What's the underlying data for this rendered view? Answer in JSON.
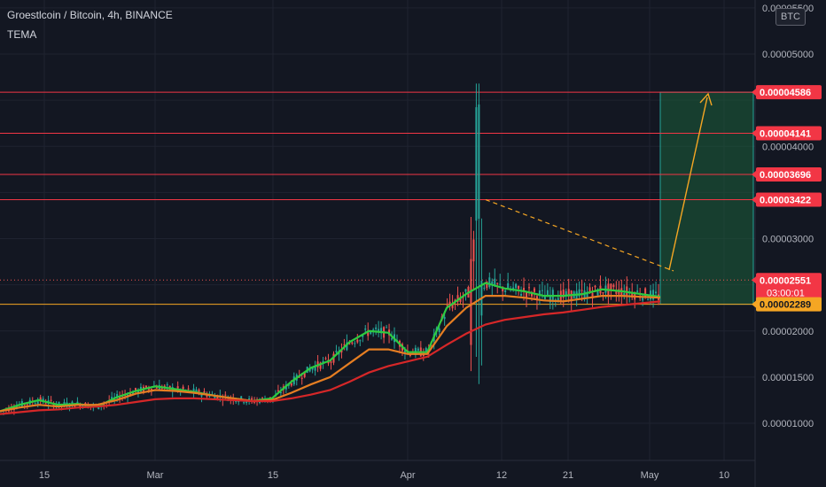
{
  "header": {
    "title": "Groestlcoin / Bitcoin, 4h, BINANCE",
    "indicator": "TEMA"
  },
  "currency_button": "BTC",
  "colors": {
    "background": "#131722",
    "grid": "#1f2330",
    "candle_up": "#26a69a",
    "candle_down": "#ef5350",
    "hline": "#f23645",
    "support": "#f5a623",
    "target_box": "#1b5e3b",
    "tema_fast": "#2ecc40",
    "tema_mid": "#e67e22",
    "tema_slow": "#d62728"
  },
  "chart_data": {
    "type": "line",
    "title": "Groestlcoin / Bitcoin, 4h, BINANCE",
    "x_ticks": [
      "15",
      "Mar",
      "15",
      "Apr",
      "12",
      "21",
      "May",
      "10"
    ],
    "y_ticks": [
      "0.00001000",
      "0.00001500",
      "0.00002000",
      "0.00003000",
      "0.00004000",
      "0.00005000",
      "0.00005500"
    ],
    "ylim": [
      8.8e-06,
      5.5e-06
    ],
    "price_labels": [
      {
        "value": 4.586e-05,
        "label": "0.00004586",
        "kind": "resistance"
      },
      {
        "value": 4.141e-05,
        "label": "0.00004141",
        "kind": "resistance"
      },
      {
        "value": 3.696e-05,
        "label": "0.00003696",
        "kind": "resistance"
      },
      {
        "value": 3.422e-05,
        "label": "0.00003422",
        "kind": "resistance"
      },
      {
        "value": 2.551e-05,
        "label": "0.00002551",
        "kind": "last"
      },
      {
        "value": 2.289e-05,
        "label": "0.00002289",
        "kind": "support"
      }
    ],
    "countdown": "03:00:01",
    "series": [
      {
        "name": "TEMA fast",
        "values": [
          1.13e-05,
          1.2e-05,
          1.25e-05,
          1.2e-05,
          1.21e-05,
          1.18e-05,
          1.28e-05,
          1.35e-05,
          1.4e-05,
          1.37e-05,
          1.34e-05,
          1.3e-05,
          1.27e-05,
          1.24e-05,
          1.27e-05,
          1.45e-05,
          1.6e-05,
          1.68e-05,
          1.88e-05,
          2e-05,
          1.98e-05,
          1.77e-05,
          1.77e-05,
          2.25e-05,
          2.4e-05,
          2.52e-05,
          2.46e-05,
          2.43e-05,
          2.38e-05,
          2.38e-05,
          2.4e-05,
          2.45e-05,
          2.43e-05,
          2.4e-05,
          2.37e-05
        ]
      },
      {
        "name": "TEMA mid",
        "values": [
          1.13e-05,
          1.17e-05,
          1.2e-05,
          1.18e-05,
          1.2e-05,
          1.2e-05,
          1.25e-05,
          1.32e-05,
          1.36e-05,
          1.35e-05,
          1.33e-05,
          1.3e-05,
          1.27e-05,
          1.24e-05,
          1.25e-05,
          1.33e-05,
          1.42e-05,
          1.5e-05,
          1.65e-05,
          1.8e-05,
          1.8e-05,
          1.75e-05,
          1.75e-05,
          2.05e-05,
          2.25e-05,
          2.38e-05,
          2.38e-05,
          2.36e-05,
          2.33e-05,
          2.32e-05,
          2.35e-05,
          2.38e-05,
          2.38e-05,
          2.37e-05,
          2.36e-05
        ]
      },
      {
        "name": "TEMA slow",
        "values": [
          1.1e-05,
          1.12e-05,
          1.14e-05,
          1.15e-05,
          1.17e-05,
          1.18e-05,
          1.2e-05,
          1.23e-05,
          1.26e-05,
          1.27e-05,
          1.27e-05,
          1.26e-05,
          1.25e-05,
          1.24e-05,
          1.24e-05,
          1.27e-05,
          1.31e-05,
          1.36e-05,
          1.45e-05,
          1.55e-05,
          1.62e-05,
          1.67e-05,
          1.72e-05,
          1.85e-05,
          1.97e-05,
          2.07e-05,
          2.12e-05,
          2.15e-05,
          2.18e-05,
          2.2e-05,
          2.23e-05,
          2.26e-05,
          2.28e-05,
          2.3e-05,
          2.32e-05
        ]
      }
    ],
    "trendline": {
      "from": 3.422e-05,
      "to": 2.65e-05
    }
  }
}
